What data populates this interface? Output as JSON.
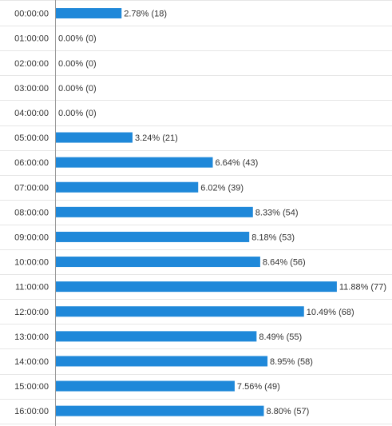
{
  "chart_data": {
    "type": "bar",
    "orientation": "horizontal",
    "categories": [
      "00:00:00",
      "01:00:00",
      "02:00:00",
      "03:00:00",
      "04:00:00",
      "05:00:00",
      "06:00:00",
      "07:00:00",
      "08:00:00",
      "09:00:00",
      "10:00:00",
      "11:00:00",
      "12:00:00",
      "13:00:00",
      "14:00:00",
      "15:00:00",
      "16:00:00"
    ],
    "values": [
      18,
      0,
      0,
      0,
      0,
      21,
      43,
      39,
      54,
      53,
      56,
      77,
      68,
      55,
      58,
      49,
      57
    ],
    "percents": [
      "2.78%",
      "0.00%",
      "0.00%",
      "0.00%",
      "0.00%",
      "3.24%",
      "6.64%",
      "6.02%",
      "8.33%",
      "8.18%",
      "8.64%",
      "11.88%",
      "10.49%",
      "8.49%",
      "8.95%",
      "7.56%",
      "8.80%"
    ],
    "data_labels": [
      "2.78% (18)",
      "0.00% (0)",
      "0.00% (0)",
      "0.00% (0)",
      "0.00% (0)",
      "3.24% (21)",
      "6.64% (43)",
      "6.02% (39)",
      "8.33% (54)",
      "8.18% (53)",
      "8.64% (56)",
      "11.88% (77)",
      "10.49% (68)",
      "8.49% (55)",
      "8.95% (58)",
      "7.56% (49)",
      "8.80% (57)"
    ],
    "xlim": [
      0,
      77
    ],
    "grid": true,
    "legend": "none",
    "title": "",
    "xlabel": "",
    "ylabel": "",
    "colors": {
      "bar": "#1f88d9",
      "grid": "#e6e6e6",
      "axis": "#999999",
      "text": "#333333"
    }
  }
}
